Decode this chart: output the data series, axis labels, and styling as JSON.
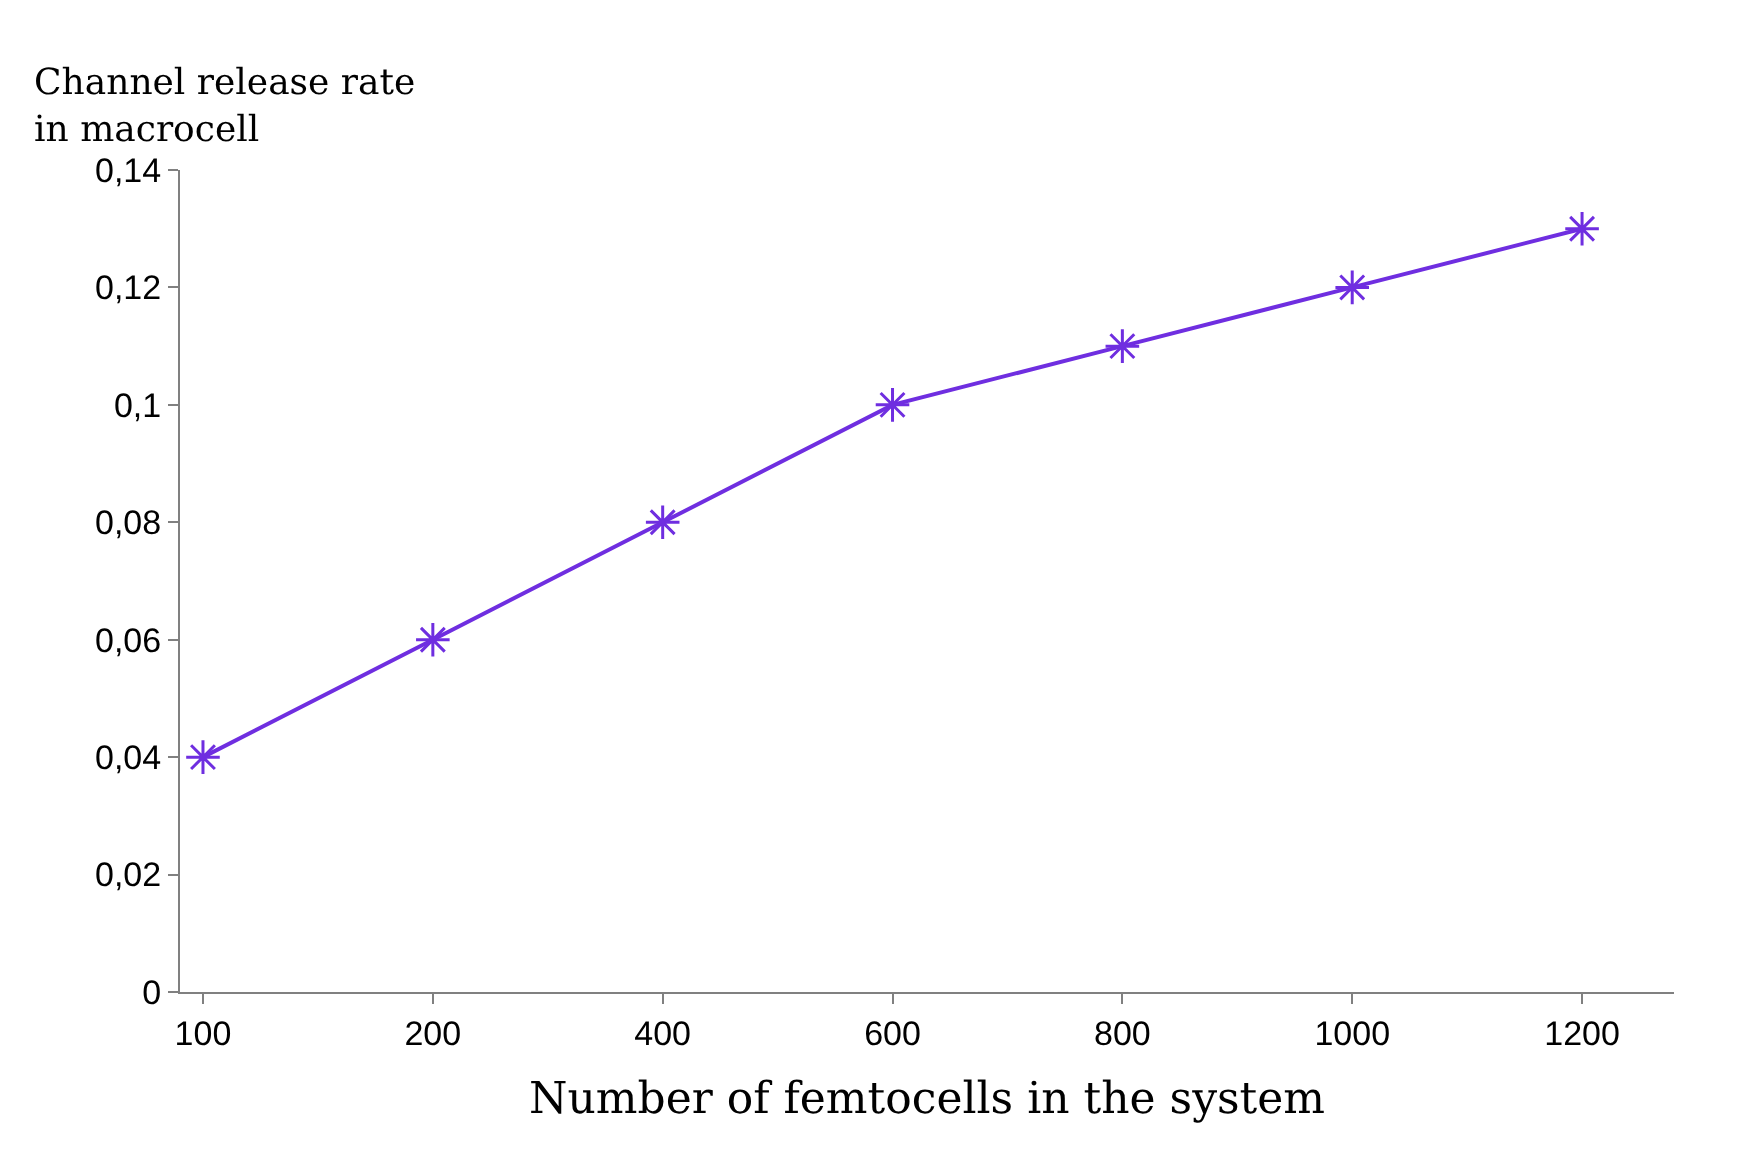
{
  "chart_data": {
    "type": "line",
    "xlabel": "Number of femtocells in the system",
    "ylabel": "Channel release rate in macrocell",
    "categories": [
      "100",
      "200",
      "400",
      "600",
      "800",
      "1000",
      "1200"
    ],
    "series": [
      {
        "color": "#6f2ee0",
        "values": [
          0.04,
          0.06,
          0.08,
          0.1,
          0.11,
          0.12,
          0.13
        ]
      }
    ],
    "ylim": [
      0,
      0.14
    ],
    "yticks": [
      0,
      {
        "value": 0.02,
        "label": "0,02"
      },
      {
        "value": 0.04,
        "label": "0,04"
      },
      {
        "value": 0.06,
        "label": "0,06"
      },
      {
        "value": 0.08,
        "label": "0,08"
      },
      {
        "value": 0.1,
        "label": "0,1"
      },
      {
        "value": 0.12,
        "label": "0,12"
      },
      {
        "value": 0.14,
        "label": "0,14"
      }
    ],
    "marker": "cross",
    "line_style": "solid",
    "legend": false
  }
}
